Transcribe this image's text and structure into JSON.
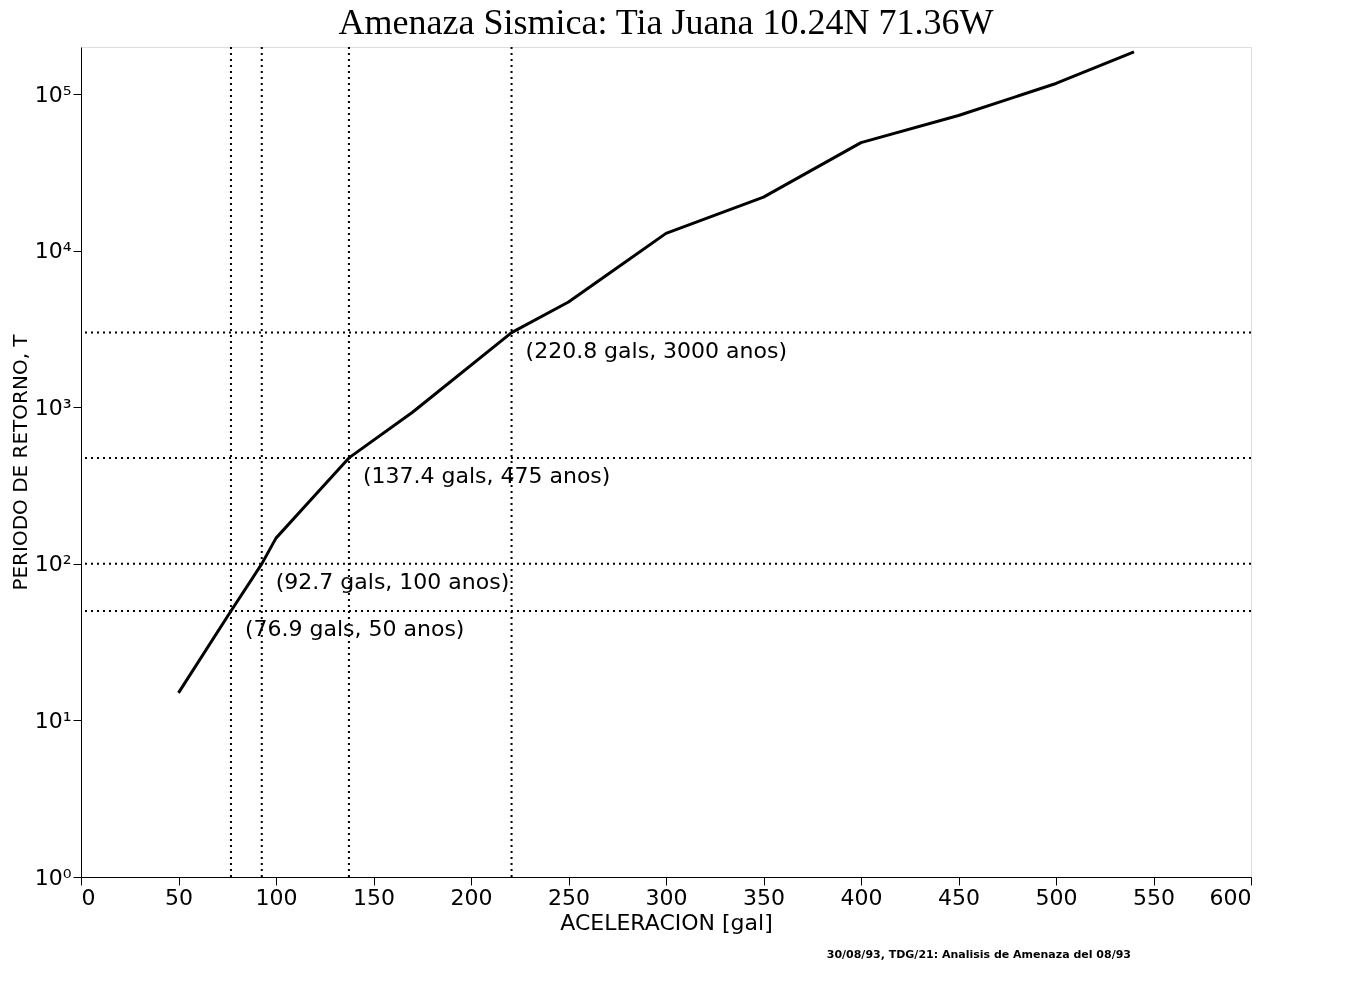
{
  "chart_data": {
    "type": "line",
    "title": "Amenaza Sismica: Tia Juana 10.24N 71.36W",
    "xlabel": "ACELERACION [gal]",
    "ylabel": "PERIODO DE RETORNO, T",
    "log": "y",
    "marker": "none",
    "line_style": "solid",
    "xlim": [
      0,
      600
    ],
    "xticks": [
      0,
      50,
      100,
      150,
      200,
      250,
      300,
      350,
      400,
      450,
      500,
      550,
      600
    ],
    "ylim": [
      1,
      200000
    ],
    "yticks": [
      {
        "value": 1,
        "label": "10⁰"
      },
      {
        "value": 10,
        "label": "10¹"
      },
      {
        "value": 100,
        "label": "10²"
      },
      {
        "value": 1000,
        "label": "10³"
      },
      {
        "value": 10000,
        "label": "10⁴"
      },
      {
        "value": 100000,
        "label": "10⁵"
      }
    ],
    "series": [
      {
        "color": "#000000",
        "x": [
          50,
          76.9,
          92.7,
          100,
          137.4,
          170,
          220.8,
          250,
          300,
          350,
          400,
          450,
          500,
          540
        ],
        "values": [
          15,
          50,
          100,
          146,
          475,
          930,
          3000,
          4700,
          12900,
          22000,
          49000,
          73000,
          117000,
          186000
        ]
      }
    ],
    "ref_lines": [
      {
        "axis": "x",
        "value": 76.9,
        "line_style": "dotted",
        "color": "#000000"
      },
      {
        "axis": "x",
        "value": 92.7,
        "line_style": "dotted",
        "color": "#000000"
      },
      {
        "axis": "x",
        "value": 137.4,
        "line_style": "dotted",
        "color": "#000000"
      },
      {
        "axis": "x",
        "value": 220.8,
        "line_style": "dotted",
        "color": "#000000"
      },
      {
        "axis": "y",
        "value": 50,
        "line_style": "dotted",
        "color": "#000000"
      },
      {
        "axis": "y",
        "value": 100,
        "line_style": "dotted",
        "color": "#000000"
      },
      {
        "axis": "y",
        "value": 475,
        "line_style": "dotted",
        "color": "#000000"
      },
      {
        "axis": "y",
        "value": 3000,
        "line_style": "dotted",
        "color": "#000000"
      }
    ],
    "annotations": [
      {
        "text": "(220.8 gals, 3000 anos)",
        "x": 220.8,
        "y": 3000
      },
      {
        "text": "(137.4 gals, 475 anos)",
        "x": 137.4,
        "y": 475
      },
      {
        "text": "(92.7 gals, 100 anos)",
        "x": 92.7,
        "y": 100
      },
      {
        "text": "(76.9 gals, 50 anos)",
        "x": 76.9,
        "y": 50
      },
      "30/08/93, TDG/21: Analisis de Amenaza del 08/93"
    ]
  }
}
